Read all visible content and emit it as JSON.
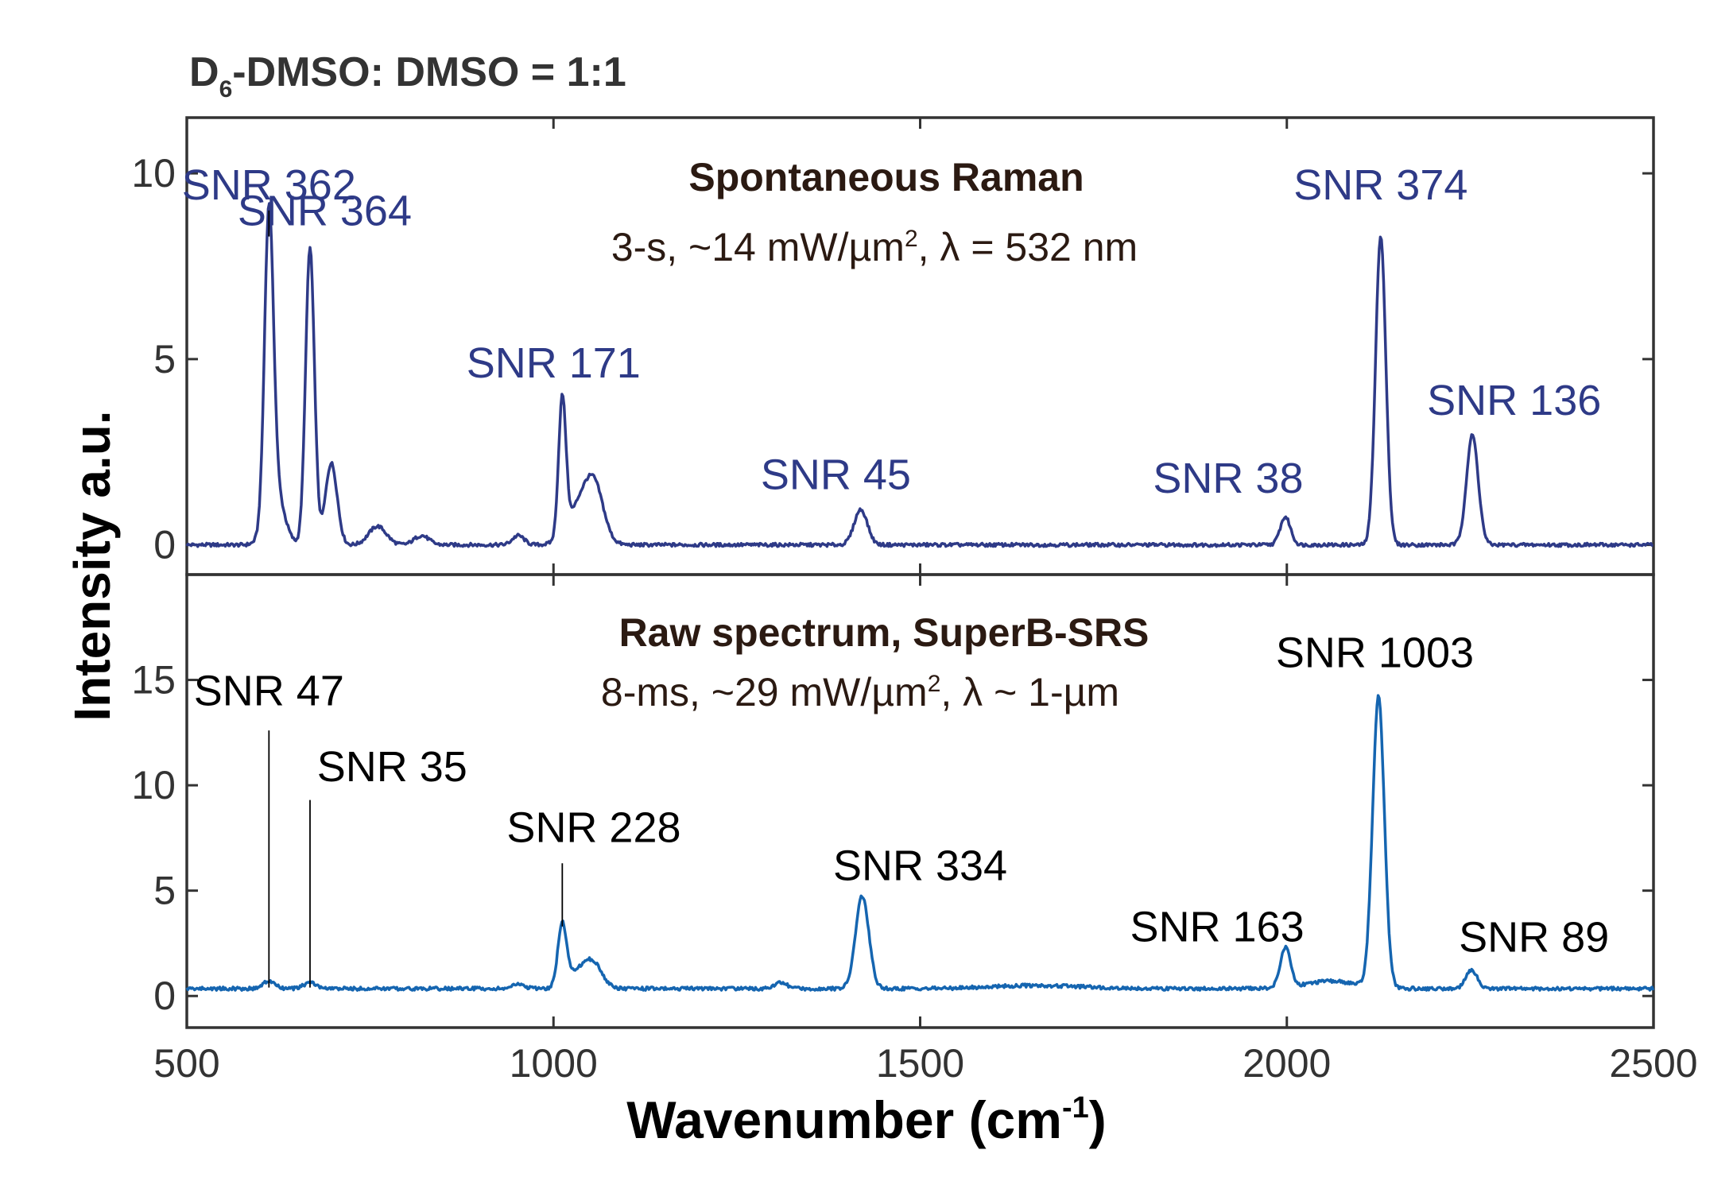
{
  "figure": {
    "title": {
      "base": "D",
      "sub": "6",
      "rest": "-DMSO: DMSO = 1:1"
    },
    "ylabel": "Intensity a.u.",
    "xlabel": {
      "main": "Wavenumber (cm",
      "sup": "-1",
      "close": ")"
    }
  },
  "colors": {
    "raman": "#2e3a87",
    "srs": "#1565b0",
    "raman_snr_text": "#2e3a87",
    "srs_snr_text": "#000000",
    "heading_text": "#2b1a12",
    "axis": "#333333"
  },
  "chart_data": [
    {
      "type": "line",
      "panel": "top",
      "heading": "Spontaneous Raman",
      "conditions": {
        "a": "3-s, ~14 mW/µm",
        "sup": "2",
        "b": ", λ = 532 nm"
      },
      "xlim": [
        500,
        2500
      ],
      "ylim": [
        -0.8,
        11.5
      ],
      "x_ticks": [
        500,
        1000,
        1500,
        2000,
        2500
      ],
      "y_ticks": [
        0,
        5,
        10
      ],
      "y_tick_labels": [
        "0",
        "5",
        "10"
      ],
      "series": [
        {
          "baseline": 0,
          "peaks": [
            {
              "x": 612,
              "height": 8.0,
              "width": 6
            },
            {
              "x": 620,
              "height": 1.5,
              "width": 12
            },
            {
              "x": 668,
              "height": 8.0,
              "width": 6
            },
            {
              "x": 697,
              "height": 2.2,
              "width": 8
            },
            {
              "x": 760,
              "height": 0.5,
              "width": 12
            },
            {
              "x": 820,
              "height": 0.25,
              "width": 10
            },
            {
              "x": 952,
              "height": 0.25,
              "width": 8
            },
            {
              "x": 1012,
              "height": 3.7,
              "width": 5
            },
            {
              "x": 1040,
              "height": 1.2,
              "width": 18
            },
            {
              "x": 1057,
              "height": 1.0,
              "width": 12
            },
            {
              "x": 1419,
              "height": 0.95,
              "width": 9
            },
            {
              "x": 1998,
              "height": 0.75,
              "width": 7
            },
            {
              "x": 2128,
              "height": 8.3,
              "width": 7
            },
            {
              "x": 2253,
              "height": 2.95,
              "width": 8
            }
          ]
        }
      ],
      "annotations": [
        {
          "text": "SNR 362",
          "x": 612,
          "y": 9.3
        },
        {
          "text": "SNR 364",
          "x": 688,
          "y": 8.6
        },
        {
          "text": "SNR 171",
          "x": 1000,
          "y": 4.5
        },
        {
          "text": "SNR 45",
          "x": 1385,
          "y": 1.5
        },
        {
          "text": "SNR 38",
          "x": 1920,
          "y": 1.4
        },
        {
          "text": "SNR 374",
          "x": 2128,
          "y": 9.3
        },
        {
          "text": "SNR 136",
          "x": 2310,
          "y": 3.5
        }
      ]
    },
    {
      "type": "line",
      "panel": "bottom",
      "heading": "Raw spectrum, SuperB-SRS",
      "conditions": {
        "a": "8-ms, ~29 mW/µm",
        "sup": "2",
        "b": ", λ ~ 1-µm"
      },
      "xlim": [
        500,
        2500
      ],
      "ylim": [
        -1.5,
        20
      ],
      "x_ticks": [
        500,
        1000,
        1500,
        2000,
        2500
      ],
      "x_tick_labels": [
        "500",
        "1000",
        "1500",
        "2000",
        "2500"
      ],
      "y_ticks": [
        0,
        5,
        10,
        15
      ],
      "y_tick_labels": [
        "0",
        "5",
        "10",
        "15"
      ],
      "series": [
        {
          "baseline": 0.35,
          "peaks": [
            {
              "x": 612,
              "height": 0.35,
              "width": 8
            },
            {
              "x": 668,
              "height": 0.3,
              "width": 8
            },
            {
              "x": 952,
              "height": 0.2,
              "width": 8
            },
            {
              "x": 1012,
              "height": 2.9,
              "width": 6
            },
            {
              "x": 1035,
              "height": 0.8,
              "width": 15
            },
            {
              "x": 1055,
              "height": 1.0,
              "width": 12
            },
            {
              "x": 1310,
              "height": 0.3,
              "width": 8
            },
            {
              "x": 1421,
              "height": 4.4,
              "width": 9
            },
            {
              "x": 1660,
              "height": 0.15,
              "width": 60
            },
            {
              "x": 1998,
              "height": 1.9,
              "width": 7
            },
            {
              "x": 2060,
              "height": 0.35,
              "width": 35
            },
            {
              "x": 2125,
              "height": 13.8,
              "width": 8
            },
            {
              "x": 2252,
              "height": 0.85,
              "width": 8
            }
          ]
        }
      ],
      "annotations": [
        {
          "text": "SNR 47",
          "x": 612,
          "y": 13.8
        },
        {
          "text": "SNR 35",
          "x": 780,
          "y": 10.2
        },
        {
          "text": "SNR 228",
          "x": 1055,
          "y": 7.3
        },
        {
          "text": "SNR 334",
          "x": 1500,
          "y": 5.5
        },
        {
          "text": "SNR 163",
          "x": 1905,
          "y": 2.6
        },
        {
          "text": "SNR 1003",
          "x": 2120,
          "y": 15.6
        },
        {
          "text": "SNR 89",
          "x": 2337,
          "y": 2.1
        }
      ]
    }
  ]
}
